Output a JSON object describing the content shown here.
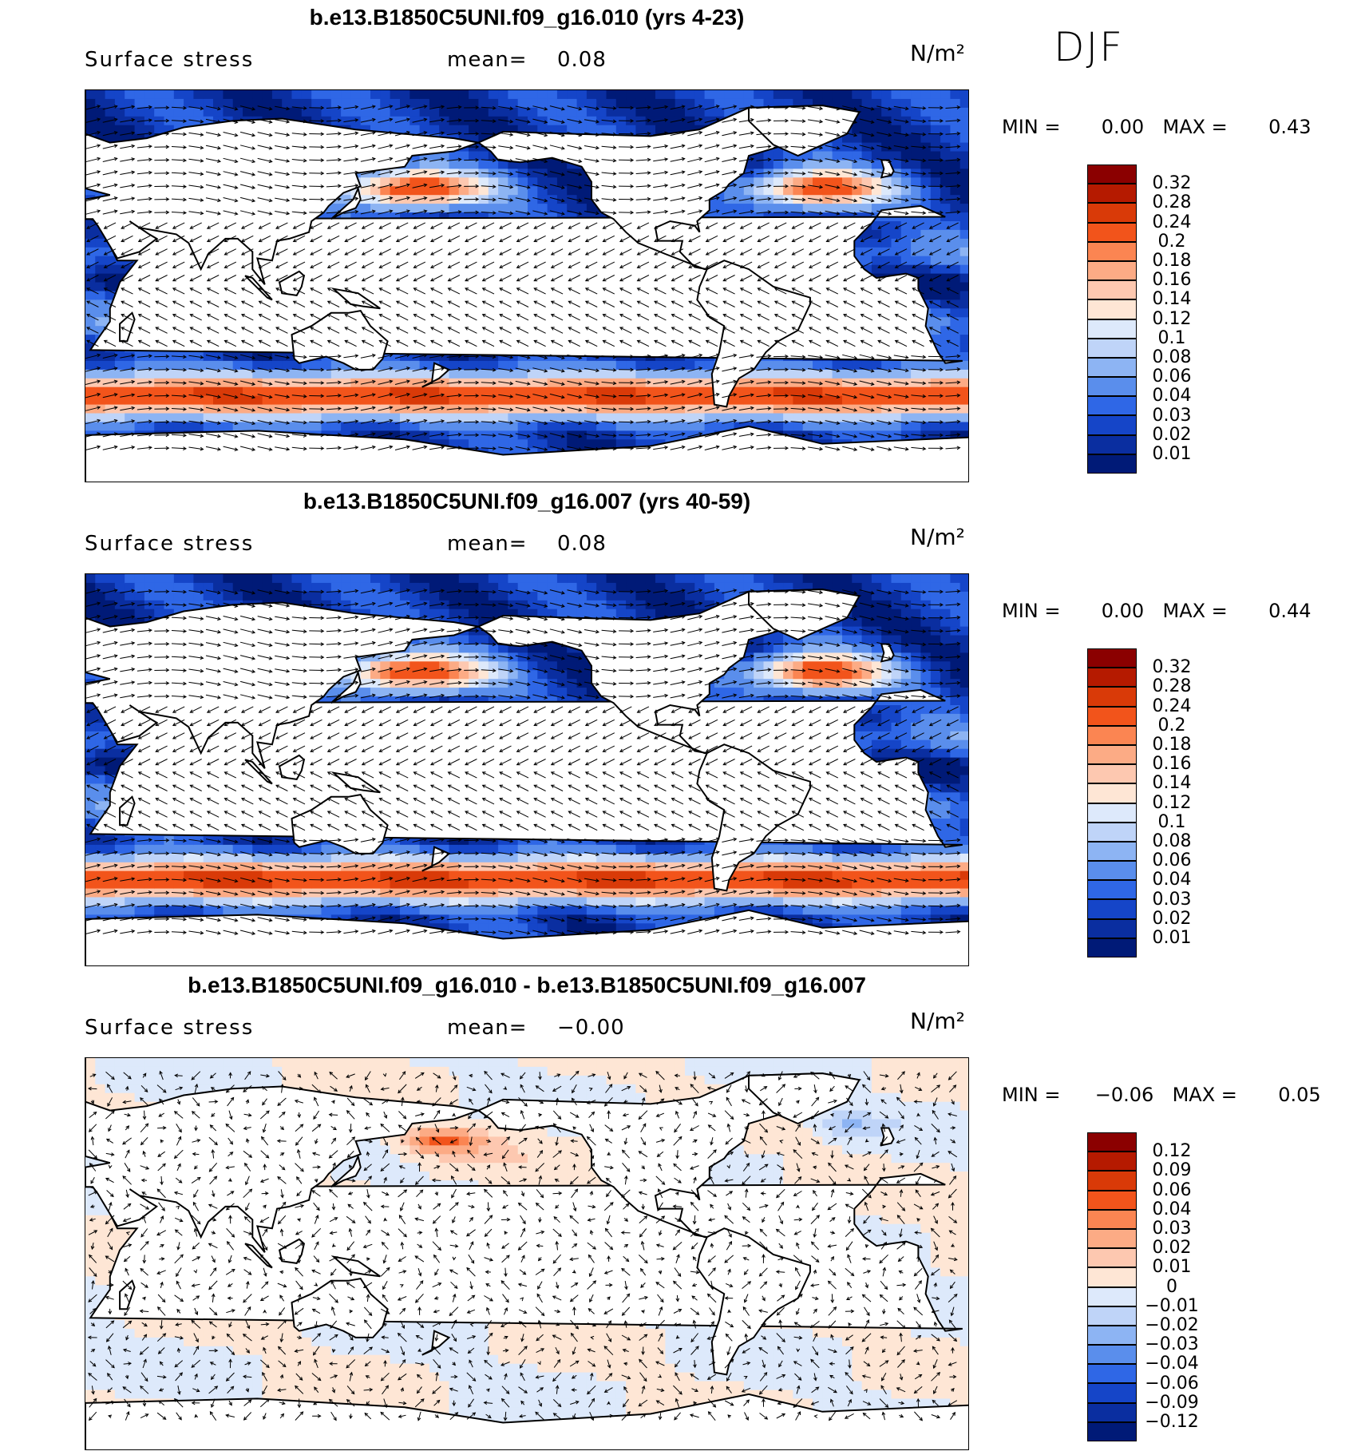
{
  "season": "DJF",
  "colors": {
    "land": "#ffffff",
    "coast": "#000000",
    "arrow": "#000000"
  },
  "panels": [
    {
      "title": "b.e13.B1850C5UNI.f09_g16.010 (yrs 4-23)",
      "variable": "Surface stress",
      "mean_label": "mean=",
      "mean_value": "0.08",
      "units": "N/m²",
      "min_label": "MIN =",
      "min_value": "0.00",
      "max_label": "MAX =",
      "max_value": "0.43",
      "colorbar": {
        "labels": [
          "0.32",
          "0.28",
          "0.24",
          "0.2",
          "0.18",
          "0.16",
          "0.14",
          "0.12",
          "0.1",
          "0.08",
          "0.06",
          "0.04",
          "0.03",
          "0.02",
          "0.01"
        ],
        "colors": [
          "#8b0000",
          "#b51a00",
          "#d93a08",
          "#f2541b",
          "#fb8552",
          "#fcab85",
          "#fdc8b0",
          "#fee6d5",
          "#dde9fb",
          "#bfd4f8",
          "#8db4f3",
          "#5a8eec",
          "#2f67e6",
          "#1545c8",
          "#0a2ea0",
          "#001a77"
        ]
      }
    },
    {
      "title": "b.e13.B1850C5UNI.f09_g16.007 (yrs 40-59)",
      "variable": "Surface stress",
      "mean_label": "mean=",
      "mean_value": "0.08",
      "units": "N/m²",
      "min_label": "MIN =",
      "min_value": "0.00",
      "max_label": "MAX =",
      "max_value": "0.44",
      "colorbar": {
        "labels": [
          "0.32",
          "0.28",
          "0.24",
          "0.2",
          "0.18",
          "0.16",
          "0.14",
          "0.12",
          "0.1",
          "0.08",
          "0.06",
          "0.04",
          "0.03",
          "0.02",
          "0.01"
        ],
        "colors": [
          "#8b0000",
          "#b51a00",
          "#d93a08",
          "#f2541b",
          "#fb8552",
          "#fcab85",
          "#fdc8b0",
          "#fee6d5",
          "#dde9fb",
          "#bfd4f8",
          "#8db4f3",
          "#5a8eec",
          "#2f67e6",
          "#1545c8",
          "#0a2ea0",
          "#001a77"
        ]
      }
    },
    {
      "title": "b.e13.B1850C5UNI.f09_g16.010 - b.e13.B1850C5UNI.f09_g16.007",
      "variable": "Surface stress",
      "mean_label": "mean=",
      "mean_value": "−0.00",
      "units": "N/m²",
      "min_label": "MIN =",
      "min_value": "−0.06",
      "max_label": "MAX =",
      "max_value": "0.05",
      "colorbar": {
        "labels": [
          "0.12",
          "0.09",
          "0.06",
          "0.04",
          "0.03",
          "0.02",
          "0.01",
          "0",
          "−0.01",
          "−0.02",
          "−0.03",
          "−0.04",
          "−0.06",
          "−0.09",
          "−0.12"
        ],
        "colors": [
          "#8b0000",
          "#b51a00",
          "#d93a08",
          "#f2541b",
          "#fb8552",
          "#fcab85",
          "#fdc8b0",
          "#fee6d5",
          "#dde9fb",
          "#bfd4f8",
          "#8db4f3",
          "#5a8eec",
          "#2f67e6",
          "#1545c8",
          "#0a2ea0",
          "#001a77"
        ]
      }
    }
  ]
}
